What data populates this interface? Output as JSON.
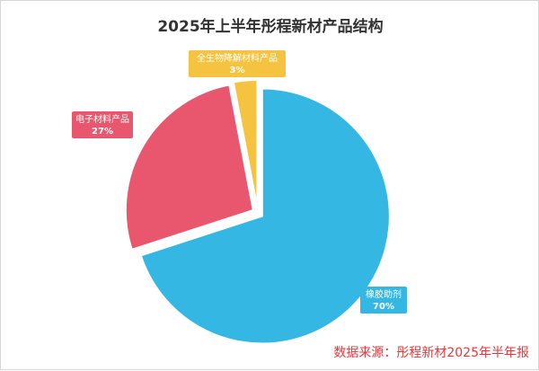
{
  "chart_data": {
    "type": "pie",
    "title": "2025年上半年彤程新材产品结构",
    "slices": [
      {
        "label": "橡胶助剂",
        "value": 70,
        "value_label": "70%",
        "color": "#35b7e3"
      },
      {
        "label": "电子材料产品",
        "value": 27,
        "value_label": "27%",
        "color": "#e8576d"
      },
      {
        "label": "全生物降解材料产品",
        "value": 3,
        "value_label": "3%",
        "color": "#f6c340"
      }
    ]
  },
  "source": "数据来源：彤程新材2025年半年报"
}
